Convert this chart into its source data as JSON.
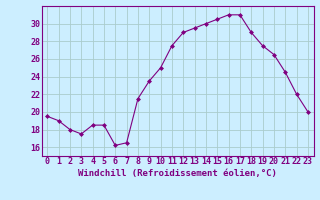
{
  "x": [
    0,
    1,
    2,
    3,
    4,
    5,
    6,
    7,
    8,
    9,
    10,
    11,
    12,
    13,
    14,
    15,
    16,
    17,
    18,
    19,
    20,
    21,
    22,
    23
  ],
  "y": [
    19.5,
    19.0,
    18.0,
    17.5,
    18.5,
    18.5,
    16.2,
    16.5,
    21.5,
    23.5,
    25.0,
    27.5,
    29.0,
    29.5,
    30.0,
    30.5,
    31.0,
    31.0,
    29.0,
    27.5,
    26.5,
    24.5,
    22.0,
    20.0
  ],
  "line_color": "#800080",
  "marker": "D",
  "marker_size": 2.0,
  "bg_color": "#cceeff",
  "grid_color": "#aacccc",
  "xlabel": "Windchill (Refroidissement éolien,°C)",
  "xlabel_fontsize": 6.5,
  "tick_fontsize": 6.0,
  "ylim": [
    15,
    32
  ],
  "xlim": [
    -0.5,
    23.5
  ],
  "yticks": [
    16,
    18,
    20,
    22,
    24,
    26,
    28,
    30
  ],
  "xticks": [
    0,
    1,
    2,
    3,
    4,
    5,
    6,
    7,
    8,
    9,
    10,
    11,
    12,
    13,
    14,
    15,
    16,
    17,
    18,
    19,
    20,
    21,
    22,
    23
  ]
}
